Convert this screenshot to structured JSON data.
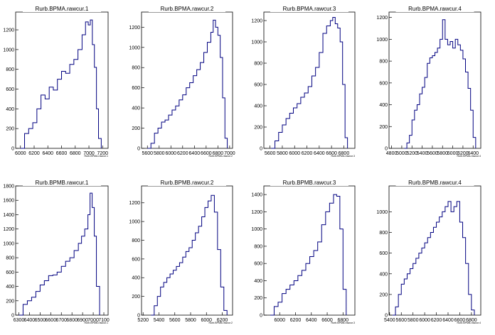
{
  "chart_data": [
    {
      "type": "histogram",
      "title": "Rurb.BPMA.rawcur.1",
      "xlabel": "Rurb.BPMA.rawcur.1",
      "xlim": [
        5930,
        7280
      ],
      "ylim": [
        0,
        1380
      ],
      "xticks": [
        6000,
        6200,
        6400,
        6600,
        6800,
        7000,
        7200
      ],
      "yticks": [
        0,
        200,
        400,
        600,
        800,
        1000,
        1200
      ],
      "x": [
        6000,
        6060,
        6120,
        6180,
        6240,
        6300,
        6360,
        6420,
        6480,
        6540,
        6600,
        6660,
        6720,
        6780,
        6840,
        6900,
        6950,
        6990,
        7020,
        7050,
        7080,
        7110,
        7140,
        7180
      ],
      "values": [
        0,
        150,
        200,
        260,
        400,
        540,
        500,
        620,
        590,
        700,
        780,
        760,
        850,
        900,
        1000,
        1150,
        1280,
        1250,
        1300,
        1050,
        820,
        400,
        100,
        0
      ]
    },
    {
      "type": "histogram",
      "title": "Rurb.BPMA.rawcur.2",
      "xlabel": "Rurb.BPMA.rawcur.2",
      "xlim": [
        5500,
        7050
      ],
      "ylim": [
        0,
        1350
      ],
      "xticks": [
        5600,
        5800,
        6000,
        6200,
        6400,
        6600,
        6800,
        7000
      ],
      "yticks": [
        0,
        200,
        400,
        600,
        800,
        1000,
        1200
      ],
      "x": [
        5600,
        5660,
        5720,
        5780,
        5840,
        5900,
        5960,
        6020,
        6080,
        6140,
        6200,
        6260,
        6320,
        6380,
        6440,
        6500,
        6560,
        6620,
        6680,
        6720,
        6760,
        6800,
        6840,
        6880,
        6920,
        6960
      ],
      "values": [
        0,
        50,
        150,
        200,
        260,
        280,
        330,
        380,
        420,
        480,
        530,
        600,
        650,
        720,
        780,
        850,
        950,
        1050,
        1150,
        1270,
        1200,
        1120,
        900,
        500,
        100,
        0
      ]
    },
    {
      "type": "histogram",
      "title": "Rurb.BPMA.rawcur.3",
      "xlabel": "Rurb.BPMA.rawcur.3",
      "xlim": [
        5500,
        6980
      ],
      "ylim": [
        0,
        1280
      ],
      "xticks": [
        5600,
        5800,
        6000,
        6200,
        6400,
        6600,
        6800
      ],
      "yticks": [
        0,
        200,
        400,
        600,
        800,
        1000,
        1200
      ],
      "x": [
        5620,
        5680,
        5740,
        5800,
        5860,
        5920,
        5980,
        6040,
        6100,
        6160,
        6220,
        6280,
        6340,
        6400,
        6460,
        6520,
        6580,
        6620,
        6660,
        6700,
        6740,
        6780,
        6820,
        6860
      ],
      "values": [
        0,
        70,
        150,
        220,
        280,
        330,
        380,
        420,
        480,
        520,
        580,
        680,
        760,
        900,
        1080,
        1150,
        1200,
        1230,
        1170,
        1130,
        1000,
        600,
        100,
        0
      ]
    },
    {
      "type": "histogram",
      "title": "Rurb.BPMA.rawcur.4",
      "xlabel": "Rurb.BPMA.rawcur.4",
      "xlim": [
        4750,
        6550
      ],
      "ylim": [
        0,
        1250
      ],
      "xticks": [
        4800,
        5000,
        5200,
        5400,
        5600,
        5800,
        6000,
        6200,
        6400
      ],
      "yticks": [
        0,
        200,
        400,
        600,
        800,
        1000,
        1200
      ],
      "x": [
        5050,
        5100,
        5150,
        5200,
        5250,
        5300,
        5350,
        5400,
        5450,
        5500,
        5550,
        5600,
        5650,
        5700,
        5750,
        5800,
        5850,
        5900,
        5950,
        6000,
        6050,
        6100,
        6150,
        6200,
        6250,
        6300,
        6350,
        6400,
        6450
      ],
      "values": [
        0,
        50,
        120,
        260,
        350,
        400,
        500,
        560,
        650,
        780,
        830,
        850,
        880,
        920,
        1000,
        1180,
        1000,
        950,
        980,
        920,
        1000,
        950,
        900,
        820,
        700,
        550,
        350,
        100,
        0
      ]
    },
    {
      "type": "histogram",
      "title": "Rurb.BPMB.rawcur.1",
      "xlabel": "Rurb.BPMB.rawcur.1",
      "xlim": [
        6270,
        7140
      ],
      "ylim": [
        0,
        1800
      ],
      "xticks": [
        6300,
        6400,
        6500,
        6600,
        6700,
        6800,
        6900,
        7000,
        7100
      ],
      "yticks": [
        0,
        200,
        400,
        600,
        800,
        1000,
        1200,
        1400,
        1600,
        1800
      ],
      "x": [
        6300,
        6340,
        6380,
        6420,
        6460,
        6500,
        6540,
        6580,
        6620,
        6660,
        6700,
        6740,
        6780,
        6820,
        6860,
        6890,
        6920,
        6950,
        6970,
        6990,
        7010,
        7030,
        7060
      ],
      "values": [
        0,
        150,
        200,
        250,
        330,
        420,
        480,
        550,
        560,
        600,
        680,
        750,
        800,
        900,
        1000,
        1100,
        1200,
        1400,
        1700,
        1500,
        1100,
        400,
        0
      ]
    },
    {
      "type": "histogram",
      "title": "Rurb.BPMB.rawcur.2",
      "xlabel": "Rurb.BPMB.rawcur.2",
      "xlim": [
        5180,
        6330
      ],
      "ylim": [
        0,
        1380
      ],
      "xticks": [
        5200,
        5400,
        5600,
        5800,
        6000,
        6200
      ],
      "yticks": [
        0,
        200,
        400,
        600,
        800,
        1000,
        1200
      ],
      "x": [
        5300,
        5340,
        5380,
        5420,
        5460,
        5500,
        5540,
        5580,
        5620,
        5660,
        5700,
        5740,
        5780,
        5820,
        5860,
        5900,
        5940,
        5980,
        6020,
        6060,
        6100,
        6140,
        6180,
        6220,
        6260
      ],
      "values": [
        0,
        100,
        200,
        300,
        350,
        400,
        440,
        480,
        520,
        560,
        620,
        680,
        720,
        800,
        880,
        950,
        1050,
        1150,
        1220,
        1280,
        1100,
        700,
        300,
        50,
        0
      ]
    },
    {
      "type": "histogram",
      "title": "Rurb.BPMB.rawcur.3",
      "xlabel": "Rurb.BPMB.rawcur.3",
      "xlim": [
        5800,
        6950
      ],
      "ylim": [
        0,
        1500
      ],
      "xticks": [
        6000,
        6200,
        6400,
        6600,
        6800
      ],
      "yticks": [
        0,
        200,
        400,
        600,
        800,
        1000,
        1200,
        1400
      ],
      "x": [
        5880,
        5930,
        5980,
        6030,
        6080,
        6130,
        6180,
        6230,
        6280,
        6330,
        6380,
        6430,
        6480,
        6530,
        6580,
        6630,
        6680,
        6720,
        6760,
        6800,
        6840
      ],
      "values": [
        0,
        100,
        150,
        250,
        300,
        350,
        400,
        460,
        520,
        600,
        680,
        750,
        850,
        1050,
        1200,
        1300,
        1400,
        1380,
        1000,
        300,
        0
      ]
    },
    {
      "type": "histogram",
      "title": "Rurb.BPMB.rawcur.4",
      "xlabel": "Rurb.BPMB.rawcur.4",
      "xlim": [
        5390,
        6960
      ],
      "ylim": [
        0,
        1250
      ],
      "xticks": [
        5400,
        5600,
        5800,
        6000,
        6200,
        6400,
        6600,
        6800
      ],
      "yticks": [
        0,
        200,
        400,
        600,
        800,
        1000
      ],
      "x": [
        5450,
        5500,
        5550,
        5600,
        5650,
        5700,
        5750,
        5800,
        5850,
        5900,
        5950,
        6000,
        6050,
        6100,
        6150,
        6200,
        6250,
        6300,
        6350,
        6400,
        6450,
        6500,
        6550,
        6600,
        6650,
        6700,
        6750,
        6800,
        6850
      ],
      "values": [
        0,
        80,
        200,
        300,
        350,
        400,
        450,
        500,
        550,
        600,
        650,
        700,
        750,
        800,
        850,
        900,
        950,
        1000,
        1050,
        1100,
        1000,
        1050,
        1100,
        900,
        750,
        500,
        200,
        50,
        0
      ]
    }
  ]
}
